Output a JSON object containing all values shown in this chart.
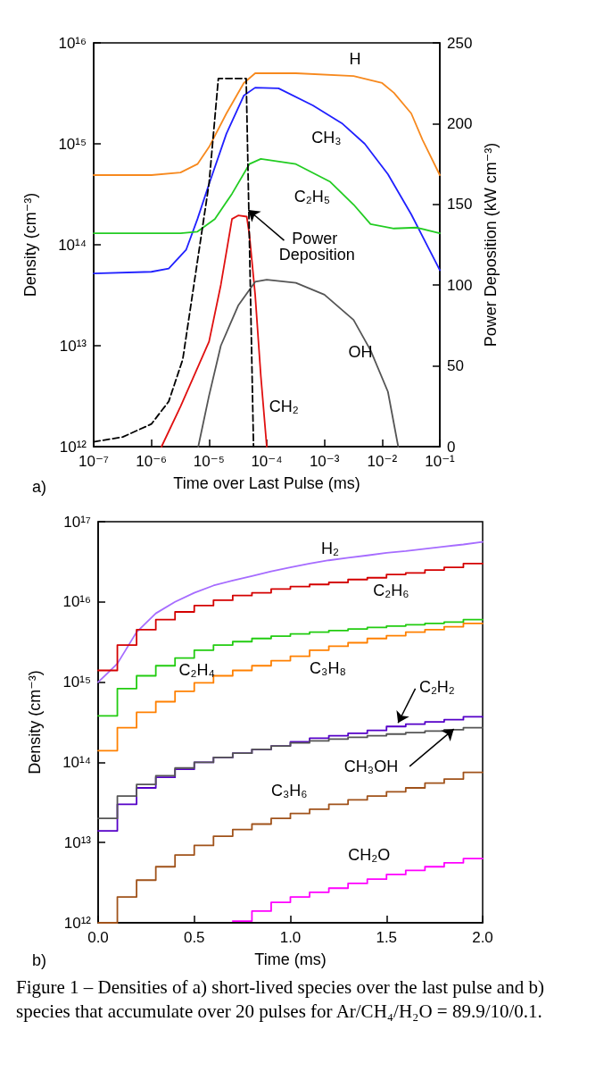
{
  "chart_data": [
    {
      "type": "line",
      "xlabel": "Time over Last Pulse (ms)",
      "ylabel": "Density (cm⁻³)",
      "y2label": "Power Deposition (kW cm⁻³)",
      "log": "xy",
      "marker": "none",
      "grid": false,
      "xlim": [
        1e-07,
        0.1
      ],
      "xticks": [
        {
          "value": 1e-07,
          "label": "10⁻⁷"
        },
        {
          "value": 1e-06,
          "label": "10⁻⁶"
        },
        {
          "value": 1e-05,
          "label": "10⁻⁵"
        },
        {
          "value": 0.0001,
          "label": "10⁻⁴"
        },
        {
          "value": 0.001,
          "label": "10⁻³"
        },
        {
          "value": 0.01,
          "label": "10⁻²"
        },
        {
          "value": 0.1,
          "label": "10⁻¹"
        }
      ],
      "ylim": [
        1000000000000.0,
        1e+16
      ],
      "yticks": [
        {
          "value": 1000000000000.0,
          "label": "10¹²"
        },
        {
          "value": 10000000000000.0,
          "label": "10¹³"
        },
        {
          "value": 100000000000000.0,
          "label": "10¹⁴"
        },
        {
          "value": 1000000000000000.0,
          "label": "10¹⁵"
        },
        {
          "value": 1e+16,
          "label": "10¹⁶"
        }
      ],
      "y2lim": [
        0,
        250
      ],
      "y2ticks": [
        0,
        50,
        100,
        150,
        200,
        250
      ],
      "annotations": [
        "a)"
      ],
      "series": [
        {
          "name": "H",
          "color": "#f7891e",
          "x": [
            1e-07,
            1e-06,
            3.2e-06,
            6.3e-06,
            1e-05,
            2e-05,
            4e-05,
            6.3e-05,
            0.00032,
            0.0032,
            0.01,
            0.016,
            0.032,
            0.05,
            0.1
          ],
          "values": [
            490000000000000.0,
            490000000000000.0,
            520000000000000.0,
            630000000000000.0,
            930000000000000.0,
            2000000000000000.0,
            4000000000000000.0,
            5000000000000000.0,
            5000000000000000.0,
            4700000000000000.0,
            4000000000000000.0,
            3200000000000000.0,
            2000000000000000.0,
            1100000000000000.0,
            490000000000000.0
          ]
        },
        {
          "name": "CH₃",
          "color": "#2020ff",
          "x": [
            1e-07,
            1e-06,
            2e-06,
            4e-06,
            6.3e-06,
            1e-05,
            2e-05,
            4e-05,
            6.3e-05,
            0.00016,
            0.00063,
            0.002,
            0.005,
            0.0126,
            0.032,
            0.1
          ],
          "values": [
            52000000000000.0,
            54000000000000.0,
            58000000000000.0,
            89000000000000.0,
            180000000000000.0,
            400000000000000.0,
            1260000000000000.0,
            3000000000000000.0,
            3600000000000000.0,
            3550000000000000.0,
            2400000000000000.0,
            1600000000000000.0,
            1000000000000000.0,
            500000000000000.0,
            200000000000000.0,
            56000000000000.0
          ]
        },
        {
          "name": "C₂H₅",
          "color": "#22cc22",
          "x": [
            1e-07,
            3.2e-06,
            6.3e-06,
            1.26e-05,
            2.5e-05,
            5e-05,
            7.9e-05,
            0.00032,
            0.00126,
            0.0032,
            0.0063,
            0.016,
            0.04,
            0.1
          ],
          "values": [
            130000000000000.0,
            130000000000000.0,
            135000000000000.0,
            180000000000000.0,
            320000000000000.0,
            630000000000000.0,
            710000000000000.0,
            630000000000000.0,
            420000000000000.0,
            250000000000000.0,
            160000000000000.0,
            145000000000000.0,
            148000000000000.0,
            130000000000000.0
          ]
        },
        {
          "name": "CH₂",
          "color": "#e01010",
          "x": [
            1.5e-06,
            3.2e-06,
            1e-05,
            1.6e-05,
            2.5e-05,
            3.2e-05,
            4.5e-05,
            5e-05,
            6.3e-05,
            7.9e-05,
            0.0001
          ],
          "values": [
            1000000000000.0,
            2500000000000.0,
            11000000000000.0,
            40000000000000.0,
            180000000000000.0,
            195000000000000.0,
            190000000000000.0,
            126000000000000.0,
            32000000000000.0,
            5000000000000.0,
            1000000000000.0
          ]
        },
        {
          "name": "OH",
          "color": "#555555",
          "x": [
            6.5e-06,
            1e-05,
            1.6e-05,
            3.2e-05,
            6.3e-05,
            0.0001,
            0.00032,
            0.001,
            0.0032,
            0.0063,
            0.0126,
            0.019
          ],
          "values": [
            1000000000000.0,
            3200000000000.0,
            10000000000000.0,
            25000000000000.0,
            43000000000000.0,
            45000000000000.0,
            42000000000000.0,
            32000000000000.0,
            18000000000000.0,
            9000000000000.0,
            3500000000000.0,
            1000000000000.0
          ]
        },
        {
          "name": "Power Deposition",
          "color": "#000000",
          "axis": "y2",
          "line_style": "dashed",
          "x": [
            1e-07,
            3.2e-07,
            1e-06,
            2e-06,
            3.5e-06,
            6.3e-06,
            1e-05,
            1.45e-05,
            4.4e-05,
            5.9e-05
          ],
          "values": [
            3,
            6,
            14,
            28,
            54,
            115,
            163,
            228,
            228,
            0
          ]
        }
      ]
    },
    {
      "type": "step",
      "xlabel": "Time (ms)",
      "ylabel": "Density (cm⁻³)",
      "log": true,
      "marker": "none",
      "grid": false,
      "xlim": [
        0,
        2
      ],
      "xticks": [
        {
          "value": 0,
          "label": "0.0"
        },
        0.5,
        {
          "value": 1,
          "label": "1.0"
        },
        1.5,
        {
          "value": 2,
          "label": "2.0"
        }
      ],
      "ylim": [
        1000000000000.0,
        1e+17
      ],
      "yticks": [
        {
          "value": 1000000000000.0,
          "label": "10¹²"
        },
        {
          "value": 10000000000000.0,
          "label": "10¹³"
        },
        {
          "value": 100000000000000.0,
          "label": "10¹⁴"
        },
        {
          "value": 1000000000000000.0,
          "label": "10¹⁵"
        },
        {
          "value": 1e+16,
          "label": "10¹⁶"
        },
        {
          "value": 1e+17,
          "label": "10¹⁷"
        }
      ],
      "x": [
        0,
        0.1,
        0.2,
        0.3,
        0.4,
        0.5,
        0.6,
        0.7,
        0.8,
        0.9,
        1.0,
        1.1,
        1.2,
        1.3,
        1.4,
        1.5,
        1.6,
        1.7,
        1.8,
        1.9,
        2.0
      ],
      "annotations": [
        "b)",
        "Figure 1 – Densities of a) short-lived species over the last pulse and b) species that accumulate over 20 pulses for Ar/CH₄/H₂O = 89.9/10/0.1."
      ],
      "series": [
        {
          "name": "H₂",
          "type": "line",
          "color": "#a66cff",
          "x": [
            0,
            0.05,
            0.1,
            0.2,
            0.3,
            0.4,
            0.5,
            0.6,
            0.7,
            0.8,
            0.9,
            1.0,
            1.1,
            1.2,
            1.3,
            1.4,
            1.5,
            1.6,
            1.7,
            1.8,
            1.9,
            2.0
          ],
          "values": [
            1000000000000000.0,
            1300000000000000.0,
            1700000000000000.0,
            4200000000000000.0,
            7200000000000000.0,
            1e+16,
            1.3e+16,
            1.6e+16,
            1.85e+16,
            2.1e+16,
            2.4e+16,
            2.7e+16,
            3e+16,
            3.3e+16,
            3.55e+16,
            3.8e+16,
            4.1e+16,
            4.3e+16,
            4.6e+16,
            4.9e+16,
            5.2e+16,
            5.6e+16
          ]
        },
        {
          "name": "C₂H₆",
          "color": "#d40000",
          "values": [
            1400000000000000.0,
            2900000000000000.0,
            4500000000000000.0,
            6000000000000000.0,
            7500000000000000.0,
            9000000000000000.0,
            1.05e+16,
            1.2e+16,
            1.3e+16,
            1.45e+16,
            1.55e+16,
            1.65e+16,
            1.75e+16,
            1.9e+16,
            2e+16,
            2.2e+16,
            2.3e+16,
            2.5e+16,
            2.7e+16,
            3e+16,
            3e+16
          ]
        },
        {
          "name": "C₂H₄",
          "color": "#22cc11",
          "values": [
            380000000000000.0,
            830000000000000.0,
            1200000000000000.0,
            1600000000000000.0,
            2000000000000000.0,
            2500000000000000.0,
            2900000000000000.0,
            3200000000000000.0,
            3500000000000000.0,
            3750000000000000.0,
            4000000000000000.0,
            4200000000000000.0,
            4400000000000000.0,
            4600000000000000.0,
            4800000000000000.0,
            5000000000000000.0,
            5200000000000000.0,
            5400000000000000.0,
            5600000000000000.0,
            6000000000000000.0,
            6000000000000000.0
          ]
        },
        {
          "name": "C₃H₈",
          "color": "#ff8000",
          "values": [
            140000000000000.0,
            270000000000000.0,
            420000000000000.0,
            570000000000000.0,
            770000000000000.0,
            980000000000000.0,
            1200000000000000.0,
            1400000000000000.0,
            1600000000000000.0,
            1850000000000000.0,
            2100000000000000.0,
            2500000000000000.0,
            2800000000000000.0,
            3100000000000000.0,
            3500000000000000.0,
            3800000000000000.0,
            4200000000000000.0,
            4500000000000000.0,
            4900000000000000.0,
            5400000000000000.0,
            5400000000000000.0
          ]
        },
        {
          "name": "C₂H₂",
          "color": "#5500c8",
          "values": [
            14000000000000.0,
            30000000000000.0,
            48000000000000.0,
            65000000000000.0,
            82000000000000.0,
            100000000000000.0,
            115000000000000.0,
            130000000000000.0,
            145000000000000.0,
            160000000000000.0,
            180000000000000.0,
            200000000000000.0,
            215000000000000.0,
            230000000000000.0,
            250000000000000.0,
            280000000000000.0,
            300000000000000.0,
            320000000000000.0,
            340000000000000.0,
            370000000000000.0,
            370000000000000.0
          ]
        },
        {
          "name": "CH₃OH",
          "color": "#555555",
          "values": [
            20000000000000.0,
            38000000000000.0,
            53000000000000.0,
            68000000000000.0,
            85000000000000.0,
            100000000000000.0,
            115000000000000.0,
            130000000000000.0,
            145000000000000.0,
            160000000000000.0,
            175000000000000.0,
            185000000000000.0,
            195000000000000.0,
            205000000000000.0,
            215000000000000.0,
            225000000000000.0,
            235000000000000.0,
            245000000000000.0,
            255000000000000.0,
            270000000000000.0,
            270000000000000.0
          ]
        },
        {
          "name": "C₃H₆",
          "color": "#a0521a",
          "values": [
            1000000000000.0,
            2100000000000.0,
            3400000000000.0,
            5000000000000.0,
            7000000000000.0,
            9200000000000.0,
            12000000000000.0,
            14500000000000.0,
            17000000000000.0,
            20000000000000.0,
            23000000000000.0,
            26000000000000.0,
            30000000000000.0,
            34000000000000.0,
            38000000000000.0,
            43000000000000.0,
            48000000000000.0,
            55000000000000.0,
            62000000000000.0,
            75000000000000.0,
            75000000000000.0
          ]
        },
        {
          "name": "CH₂O",
          "color": "#ff00ff",
          "x": [
            0.7,
            0.8,
            0.9,
            1.0,
            1.1,
            1.2,
            1.3,
            1.4,
            1.5,
            1.6,
            1.7,
            1.8,
            1.9,
            2.0
          ],
          "values": [
            1050000000000.0,
            1400000000000.0,
            1800000000000.0,
            2100000000000.0,
            2400000000000.0,
            2700000000000.0,
            3100000000000.0,
            3500000000000.0,
            4000000000000.0,
            4500000000000.0,
            5000000000000.0,
            5600000000000.0,
            6300000000000.0,
            6300000000000.0
          ]
        }
      ]
    }
  ]
}
